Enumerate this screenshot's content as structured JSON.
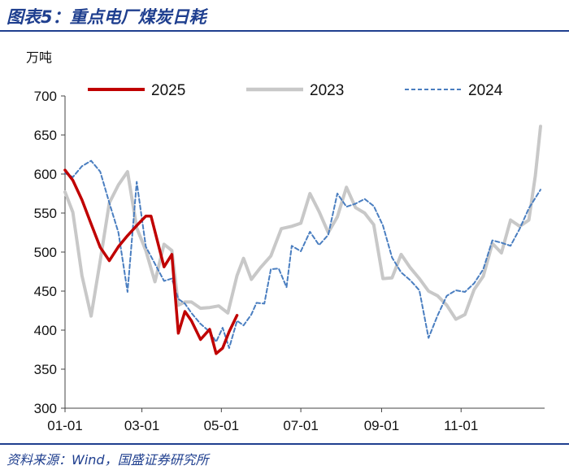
{
  "header": {
    "title": "图表5：重点电厂煤炭日耗",
    "source": "资料来源：Wind，国盛证券研究所"
  },
  "chart_data": {
    "type": "line",
    "title": "图表5：重点电厂煤炭日耗",
    "ylabel": "万吨",
    "xlabel": "",
    "ylim": [
      300,
      700
    ],
    "yticks": [
      300,
      350,
      400,
      450,
      500,
      550,
      600,
      650,
      700
    ],
    "xlim": [
      0,
      365
    ],
    "xticks": [
      {
        "label": "01-01",
        "day": 0
      },
      {
        "label": "03-01",
        "day": 59
      },
      {
        "label": "05-01",
        "day": 120
      },
      {
        "label": "07-01",
        "day": 181
      },
      {
        "label": "09-01",
        "day": 243
      },
      {
        "label": "11-01",
        "day": 304
      }
    ],
    "grid": false,
    "legend_position": "top",
    "series": [
      {
        "name": "2025",
        "color": "#c00000",
        "style": "solid",
        "points": [
          [
            0,
            605
          ],
          [
            6,
            592
          ],
          [
            13,
            567
          ],
          [
            20,
            536
          ],
          [
            27,
            506
          ],
          [
            34,
            489
          ],
          [
            41,
            507
          ],
          [
            48,
            521
          ],
          [
            55,
            534
          ],
          [
            62,
            546
          ],
          [
            66,
            546
          ],
          [
            76,
            481
          ],
          [
            82,
            497
          ],
          [
            87,
            396
          ],
          [
            92,
            424
          ],
          [
            97,
            412
          ],
          [
            104,
            388
          ],
          [
            111,
            401
          ],
          [
            116,
            370
          ],
          [
            121,
            377
          ],
          [
            126,
            398
          ],
          [
            132,
            419
          ]
        ]
      },
      {
        "name": "2023",
        "color": "#c8c8c8",
        "style": "solid",
        "points": [
          [
            0,
            577
          ],
          [
            6,
            551
          ],
          [
            13,
            470
          ],
          [
            20,
            418
          ],
          [
            27,
            489
          ],
          [
            34,
            563
          ],
          [
            41,
            586
          ],
          [
            48,
            603
          ],
          [
            55,
            531
          ],
          [
            62,
            502
          ],
          [
            69,
            462
          ],
          [
            76,
            510
          ],
          [
            82,
            502
          ],
          [
            87,
            432
          ],
          [
            92,
            436
          ],
          [
            97,
            436
          ],
          [
            104,
            428
          ],
          [
            111,
            429
          ],
          [
            118,
            431
          ],
          [
            125,
            422
          ],
          [
            132,
            470
          ],
          [
            137,
            492
          ],
          [
            143,
            465
          ],
          [
            150,
            480
          ],
          [
            158,
            495
          ],
          [
            166,
            530
          ],
          [
            174,
            533
          ],
          [
            181,
            537
          ],
          [
            188,
            575
          ],
          [
            195,
            552
          ],
          [
            202,
            525
          ],
          [
            209,
            545
          ],
          [
            216,
            583
          ],
          [
            223,
            557
          ],
          [
            230,
            550
          ],
          [
            237,
            535
          ],
          [
            244,
            466
          ],
          [
            251,
            467
          ],
          [
            258,
            497
          ],
          [
            265,
            480
          ],
          [
            272,
            466
          ],
          [
            279,
            450
          ],
          [
            286,
            444
          ],
          [
            293,
            432
          ],
          [
            300,
            414
          ],
          [
            307,
            420
          ],
          [
            314,
            452
          ],
          [
            321,
            469
          ],
          [
            328,
            511
          ],
          [
            335,
            499
          ],
          [
            342,
            541
          ],
          [
            349,
            533
          ],
          [
            356,
            541
          ],
          [
            361,
            598
          ],
          [
            365,
            661
          ]
        ]
      },
      {
        "name": "2024",
        "color": "#4a7ec0",
        "style": "dashed",
        "points": [
          [
            0,
            601
          ],
          [
            6,
            596
          ],
          [
            13,
            610
          ],
          [
            20,
            617
          ],
          [
            27,
            603
          ],
          [
            34,
            563
          ],
          [
            41,
            525
          ],
          [
            48,
            449
          ],
          [
            55,
            590
          ],
          [
            62,
            507
          ],
          [
            69,
            485
          ],
          [
            76,
            463
          ],
          [
            82,
            466
          ],
          [
            87,
            440
          ],
          [
            92,
            434
          ],
          [
            97,
            422
          ],
          [
            104,
            408
          ],
          [
            111,
            398
          ],
          [
            116,
            385
          ],
          [
            121,
            403
          ],
          [
            126,
            377
          ],
          [
            132,
            412
          ],
          [
            137,
            406
          ],
          [
            143,
            420
          ],
          [
            147,
            435
          ],
          [
            153,
            434
          ],
          [
            158,
            478
          ],
          [
            164,
            479
          ],
          [
            170,
            455
          ],
          [
            174,
            508
          ],
          [
            181,
            501
          ],
          [
            188,
            526
          ],
          [
            195,
            509
          ],
          [
            202,
            522
          ],
          [
            209,
            575
          ],
          [
            216,
            558
          ],
          [
            223,
            562
          ],
          [
            230,
            568
          ],
          [
            237,
            559
          ],
          [
            244,
            534
          ],
          [
            251,
            493
          ],
          [
            258,
            474
          ],
          [
            265,
            464
          ],
          [
            272,
            451
          ],
          [
            279,
            390
          ],
          [
            286,
            419
          ],
          [
            293,
            444
          ],
          [
            300,
            451
          ],
          [
            307,
            449
          ],
          [
            314,
            460
          ],
          [
            321,
            478
          ],
          [
            328,
            515
          ],
          [
            335,
            512
          ],
          [
            342,
            508
          ],
          [
            349,
            530
          ],
          [
            356,
            556
          ],
          [
            365,
            580
          ]
        ]
      }
    ]
  }
}
